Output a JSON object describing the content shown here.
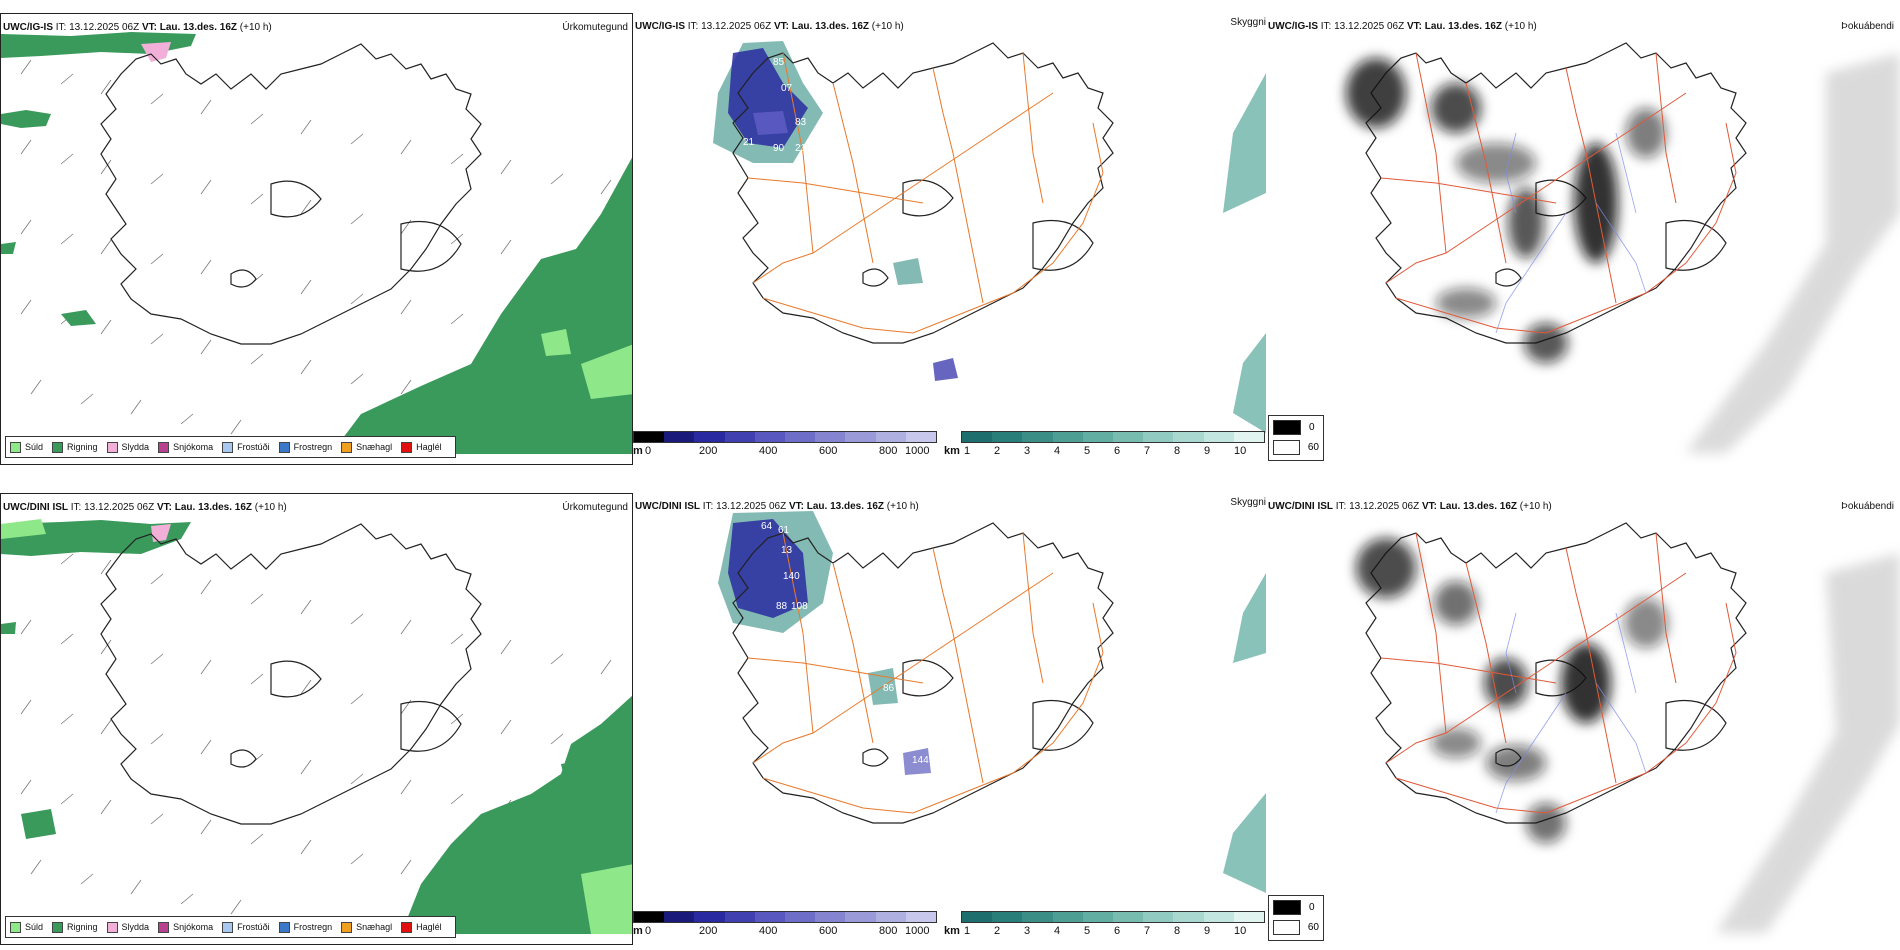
{
  "rows": [
    {
      "model": "UWC/IG-IS",
      "it_label": "IT:",
      "it_value": "13.12.2025 06Z",
      "vt_label": "VT:",
      "vt_value": "Lau. 13.des. 16Z",
      "lead": "(+10 h)"
    },
    {
      "model": "UWC/DINI ISL",
      "it_label": "IT:",
      "it_value": "13.12.2025 06Z",
      "vt_label": "VT:",
      "vt_value": "Lau. 13.des. 16Z",
      "lead": "(+10 h)"
    }
  ],
  "panels": {
    "precip": {
      "name": "Úrkomutegund",
      "legend": [
        {
          "label": "Súld",
          "color": "#8ee88a"
        },
        {
          "label": "Rigning",
          "color": "#3a9a5c"
        },
        {
          "label": "Slydda",
          "color": "#f2b0d8"
        },
        {
          "label": "Snjókoma",
          "color": "#b8408f"
        },
        {
          "label": "Frostúði",
          "color": "#a8c8f0"
        },
        {
          "label": "Frostregn",
          "color": "#3a78c8"
        },
        {
          "label": "Snæhagl",
          "color": "#f0a020"
        },
        {
          "label": "Haglél",
          "color": "#e01010"
        }
      ]
    },
    "ceiling": {
      "name": "Skyggni",
      "bar_m_unit": "m",
      "bar_m_ticks": [
        "0",
        "200",
        "400",
        "600",
        "800",
        "1000"
      ],
      "bar_m_colors": [
        "#000000",
        "#1a1a7a",
        "#2a2aa0",
        "#4040b0",
        "#5858c0",
        "#6e6ec8",
        "#8484d0",
        "#9a9ad8",
        "#b0b0e0",
        "#c8c8ec"
      ],
      "bar_km_unit": "km",
      "bar_km_ticks": [
        "1",
        "2",
        "3",
        "4",
        "5",
        "6",
        "7",
        "8",
        "9",
        "10"
      ],
      "bar_km_colors": [
        "#1e6e6e",
        "#2a7e7a",
        "#3a8e86",
        "#4e9e94",
        "#62aea2",
        "#78bcb0",
        "#90cac0",
        "#a8d8d0",
        "#c4e6e0",
        "#e2f4f0"
      ],
      "row1_labels": [
        "85",
        "07",
        "83",
        "21",
        "21",
        "90"
      ],
      "row2_labels": [
        "64",
        "61",
        "13",
        "140",
        "88",
        "108",
        "86",
        "144"
      ]
    },
    "fog": {
      "name": "Þokuábendi",
      "key": [
        {
          "label": "0",
          "color": "#000000"
        },
        {
          "label": "60",
          "color": "#ffffff"
        }
      ]
    }
  },
  "colors": {
    "land_fog": "#f1e0d4",
    "roads": "#e8782a",
    "roads_fog": "#e05a3a",
    "rivers": "#7d8ce8",
    "rain": "#3a9a5c",
    "drizzle": "#8ee88a"
  }
}
